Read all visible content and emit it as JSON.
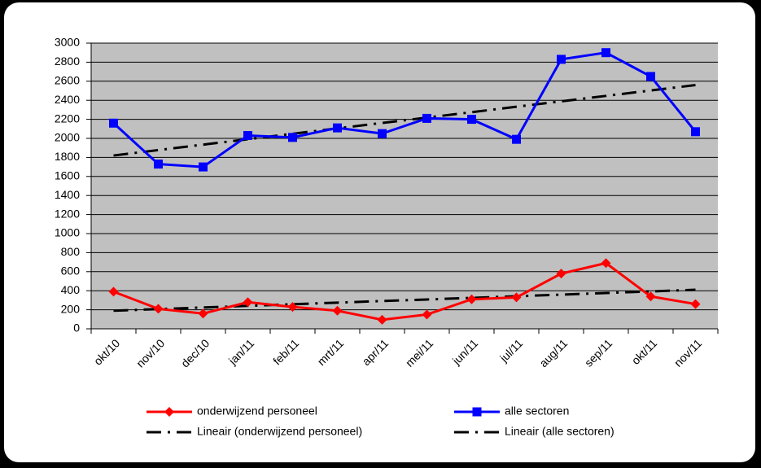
{
  "chart_data": {
    "type": "line",
    "categories": [
      "okt/10",
      "nov/10",
      "dec/10",
      "jan/11",
      "feb/11",
      "mrt/11",
      "apr/11",
      "mei/11",
      "jun/11",
      "jul/11",
      "aug/11",
      "sep/11",
      "okt/11",
      "nov/11"
    ],
    "series": [
      {
        "name": "onderwijzend personeel",
        "color": "#ff0000",
        "marker": "diamond",
        "line_style": "solid",
        "values": [
          390,
          210,
          160,
          280,
          230,
          190,
          95,
          150,
          310,
          330,
          580,
          690,
          340,
          260
        ]
      },
      {
        "name": "alle sectoren",
        "color": "#0000ff",
        "marker": "square",
        "line_style": "solid",
        "values": [
          2160,
          1730,
          1700,
          2030,
          2010,
          2110,
          2050,
          2210,
          2200,
          1990,
          2830,
          2900,
          2650,
          2070
        ]
      },
      {
        "name": "Lineair (onderwijzend personeel)",
        "color": "#000000",
        "marker": null,
        "line_style": "dash-dot",
        "values": [
          190,
          207,
          224,
          241,
          258,
          275,
          292,
          308,
          325,
          342,
          359,
          376,
          393,
          410
        ]
      },
      {
        "name": "Lineair (alle sectoren)",
        "color": "#000000",
        "marker": null,
        "line_style": "dash-dot",
        "values": [
          1820,
          1877,
          1934,
          1991,
          2048,
          2105,
          2162,
          2218,
          2275,
          2332,
          2389,
          2446,
          2503,
          2560
        ]
      }
    ],
    "ylim": [
      0,
      3000
    ],
    "yticks": [
      0,
      200,
      400,
      600,
      800,
      1000,
      1200,
      1400,
      1600,
      1800,
      2000,
      2200,
      2400,
      2600,
      2800,
      3000
    ],
    "grid": true,
    "plot_background": "#c0c0c0",
    "legend": "bottom"
  }
}
